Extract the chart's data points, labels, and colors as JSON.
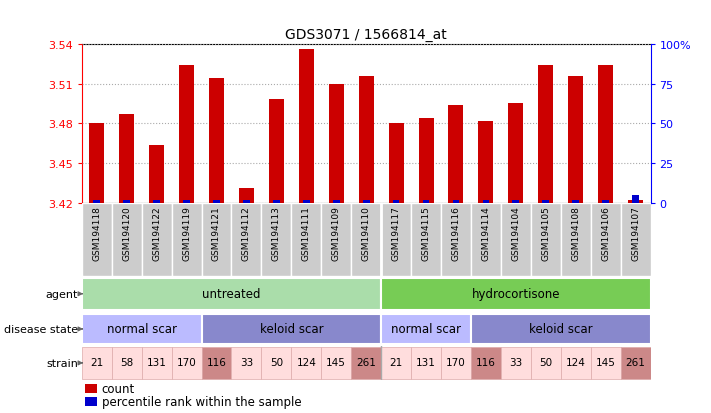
{
  "title": "GDS3071 / 1566814_at",
  "samples": [
    "GSM194118",
    "GSM194120",
    "GSM194122",
    "GSM194119",
    "GSM194121",
    "GSM194112",
    "GSM194113",
    "GSM194111",
    "GSM194109",
    "GSM194110",
    "GSM194117",
    "GSM194115",
    "GSM194116",
    "GSM194114",
    "GSM194104",
    "GSM194105",
    "GSM194108",
    "GSM194106",
    "GSM194107"
  ],
  "counts": [
    3.48,
    3.487,
    3.464,
    3.524,
    3.514,
    3.431,
    3.498,
    3.536,
    3.51,
    3.516,
    3.48,
    3.484,
    3.494,
    3.482,
    3.495,
    3.524,
    3.516,
    3.524,
    3.422
  ],
  "percentiles": [
    2,
    2,
    2,
    2,
    2,
    2,
    2,
    2,
    2,
    2,
    2,
    2,
    2,
    2,
    2,
    2,
    2,
    2,
    5
  ],
  "ylim_left": [
    3.42,
    3.54
  ],
  "ylim_right": [
    0,
    100
  ],
  "yticks_left": [
    3.42,
    3.45,
    3.48,
    3.51,
    3.54
  ],
  "yticks_right": [
    0,
    25,
    50,
    75,
    100
  ],
  "bar_color": "#cc0000",
  "percentile_color": "#0000cc",
  "agent_groups": [
    {
      "label": "untreated",
      "start": 0,
      "end": 9,
      "color": "#aaddaa"
    },
    {
      "label": "hydrocortisone",
      "start": 10,
      "end": 18,
      "color": "#77cc55"
    }
  ],
  "disease_groups": [
    {
      "label": "normal scar",
      "start": 0,
      "end": 3,
      "color": "#bbbbff"
    },
    {
      "label": "keloid scar",
      "start": 4,
      "end": 9,
      "color": "#8888cc"
    },
    {
      "label": "normal scar",
      "start": 10,
      "end": 12,
      "color": "#bbbbff"
    },
    {
      "label": "keloid scar",
      "start": 13,
      "end": 18,
      "color": "#8888cc"
    }
  ],
  "strain_values": [
    "21",
    "58",
    "131",
    "170",
    "116",
    "33",
    "50",
    "124",
    "145",
    "261",
    "21",
    "131",
    "170",
    "116",
    "33",
    "50",
    "124",
    "145",
    "261"
  ],
  "strain_highlighted": [
    4,
    9,
    13,
    18
  ],
  "strain_color_normal": "#ffdddd",
  "strain_color_highlight": "#cc8888",
  "sample_cell_color": "#cccccc",
  "sample_cell_border": "#ffffff",
  "bg_color": "#ffffff",
  "left_label_color": "#555555",
  "grid_color": "#aaaaaa",
  "bar_width": 0.5
}
